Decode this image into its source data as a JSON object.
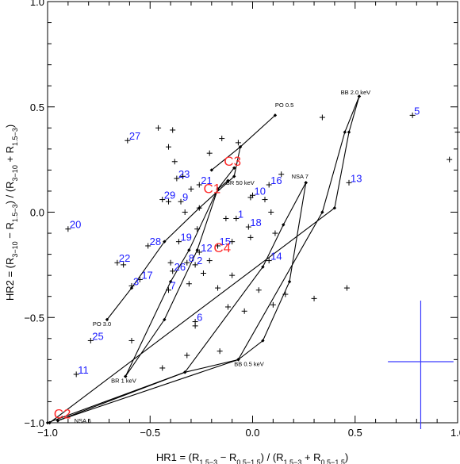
{
  "chart_data": {
    "type": "scatter",
    "xlim": [
      -1.0,
      1.0
    ],
    "ylim": [
      -1.0,
      1.0
    ],
    "grid": false,
    "x_ticks": [
      {
        "value": -1.0,
        "label": "−1.0"
      },
      {
        "value": -0.5,
        "label": "−0.5"
      },
      {
        "value": 0.0,
        "label": "0.0"
      },
      {
        "value": 0.5,
        "label": "0.5"
      },
      {
        "value": 1.0,
        "label": "1.0"
      }
    ],
    "y_ticks": [
      {
        "value": -1.0,
        "label": "−1.0"
      },
      {
        "value": -0.5,
        "label": "−0.5"
      },
      {
        "value": 0.0,
        "label": "0.0"
      },
      {
        "value": 0.5,
        "label": "0.5"
      },
      {
        "value": 1.0,
        "label": "1.0"
      }
    ],
    "xlabel": {
      "parts": [
        {
          "t": "HR1 = (R"
        },
        {
          "t": "1.5−3",
          "sub": true
        },
        {
          "t": " − R"
        },
        {
          "t": "0.5−1.5",
          "sub": true
        },
        {
          "t": ") / (R"
        },
        {
          "t": "1.5−3",
          "sub": true
        },
        {
          "t": " + R"
        },
        {
          "t": "0.5−1.5",
          "sub": true
        },
        {
          "t": ")"
        }
      ]
    },
    "ylabel": {
      "parts": [
        {
          "t": "HR2 = (R"
        },
        {
          "t": "3−10",
          "sub": true
        },
        {
          "t": " − R"
        },
        {
          "t": "1.5−3",
          "sub": true
        },
        {
          "t": ") / (R"
        },
        {
          "t": "3−10",
          "sub": true
        },
        {
          "t": " + R"
        },
        {
          "t": "1.5−3",
          "sub": true
        },
        {
          "t": ")"
        }
      ]
    },
    "colors": {
      "sources": "#1a1aff",
      "clusters": "#ff2a2a",
      "model": "#000000",
      "error_bar": "#3a3aff"
    },
    "model_grid": [
      {
        "name": "PO 0.5",
        "points": [
          [
            -0.2,
            0.2
          ],
          [
            -0.06,
            0.31
          ],
          [
            0.11,
            0.46
          ]
        ]
      },
      {
        "name": "PO 3.0",
        "points": [
          [
            -0.71,
            -0.51
          ],
          [
            -0.59,
            -0.36
          ],
          [
            -0.43,
            -0.14
          ],
          [
            -0.26,
            0.02
          ],
          [
            -0.09,
            0.17
          ],
          [
            -0.06,
            0.31
          ]
        ]
      },
      {
        "name": "BR 1 keV",
        "points": [
          [
            -0.62,
            -0.78
          ],
          [
            -0.43,
            -0.51
          ],
          [
            -0.27,
            -0.18
          ],
          [
            -0.17,
            0.11
          ],
          [
            -0.09,
            0.21
          ]
        ]
      },
      {
        "name": "BR 50 keV",
        "points": [
          [
            -0.62,
            -0.78
          ],
          [
            -0.4,
            -0.33
          ],
          [
            -0.31,
            -0.18
          ],
          [
            -0.17,
            0.11
          ],
          [
            -0.12,
            0.15
          ]
        ]
      },
      {
        "name": "BB 0.5 keV",
        "points": [
          [
            -1.0,
            -1.0
          ],
          [
            -0.33,
            -0.76
          ],
          [
            -0.07,
            -0.7
          ],
          [
            0.05,
            -0.61
          ],
          [
            0.18,
            -0.33
          ],
          [
            0.26,
            0.14
          ]
        ]
      },
      {
        "name": "NSA 7",
        "points": [
          [
            -0.95,
            -0.99
          ],
          [
            -0.33,
            -0.76
          ],
          [
            0.05,
            -0.26
          ],
          [
            0.15,
            -0.06
          ],
          [
            0.26,
            0.14
          ]
        ]
      },
      {
        "name": "NSA 6",
        "points": [
          [
            -0.95,
            -0.99
          ],
          [
            -0.07,
            -0.7
          ],
          [
            0.34,
            0.0
          ],
          [
            0.45,
            0.38
          ],
          [
            0.52,
            0.55
          ]
        ]
      },
      {
        "name": "BB 2.0 keV",
        "points": [
          [
            -0.99,
            -1.0
          ],
          [
            0.4,
            0.02
          ],
          [
            0.47,
            0.38
          ],
          [
            0.52,
            0.55
          ]
        ]
      }
    ],
    "model_labels": [
      {
        "text": "PO 0.5",
        "x": 0.11,
        "y": 0.5
      },
      {
        "text": "BB 2.0 keV",
        "x": 0.43,
        "y": 0.56
      },
      {
        "text": "NSA 7",
        "x": 0.19,
        "y": 0.16
      },
      {
        "text": "BR 50 keV",
        "x": -0.13,
        "y": 0.13
      },
      {
        "text": "PO 3.0",
        "x": -0.78,
        "y": -0.54
      },
      {
        "text": "BR 1 keV",
        "x": -0.69,
        "y": -0.81
      },
      {
        "text": "BB 0.5 keV",
        "x": -0.09,
        "y": -0.73
      },
      {
        "text": "NSA 6",
        "x": -0.87,
        "y": -1.0
      }
    ],
    "crosses": [
      [
        -0.46,
        0.4
      ],
      [
        -0.39,
        0.39
      ],
      [
        -0.41,
        0.31
      ],
      [
        -0.38,
        0.24
      ],
      [
        -0.34,
        0.17
      ],
      [
        -0.21,
        0.28
      ],
      [
        -0.15,
        0.35
      ],
      [
        -0.07,
        0.33
      ],
      [
        -0.3,
        0.11
      ],
      [
        -0.26,
        0.02
      ],
      [
        -0.33,
        0.0
      ],
      [
        -0.27,
        -0.08
      ],
      [
        -0.13,
        -0.03
      ],
      [
        -0.1,
        -0.14
      ],
      [
        -0.01,
        0.07
      ],
      [
        0.06,
        0.06
      ],
      [
        -0.01,
        -0.12
      ],
      [
        0.11,
        -0.1
      ],
      [
        0.09,
        0.0
      ],
      [
        -0.21,
        -0.23
      ],
      [
        -0.24,
        -0.29
      ],
      [
        -0.31,
        -0.34
      ],
      [
        -0.4,
        -0.24
      ],
      [
        -0.1,
        -0.3
      ],
      [
        -0.17,
        -0.36
      ],
      [
        -0.12,
        -0.45
      ],
      [
        -0.28,
        -0.54
      ],
      [
        -0.04,
        -0.47
      ],
      [
        0.03,
        -0.37
      ],
      [
        0.1,
        -0.44
      ],
      [
        0.16,
        -0.39
      ],
      [
        0.3,
        -0.41
      ],
      [
        0.46,
        -0.36
      ],
      [
        0.34,
        0.45
      ],
      [
        0.14,
        0.18
      ],
      [
        -0.41,
        0.05
      ],
      [
        -0.16,
        -0.66
      ],
      [
        -0.32,
        -0.68
      ],
      [
        -0.44,
        -0.74
      ],
      [
        -0.59,
        -0.61
      ],
      [
        0.96,
        0.25
      ],
      [
        1.0,
        0.38
      ],
      [
        -0.63,
        -0.25
      ]
    ],
    "sources": [
      {
        "label": "5",
        "x": 0.78,
        "y": 0.46,
        "cross": true
      },
      {
        "label": "13",
        "x": 0.47,
        "y": 0.14,
        "cross": true
      },
      {
        "label": "27",
        "x": -0.61,
        "y": 0.34,
        "cross": true
      },
      {
        "label": "23",
        "x": -0.37,
        "y": 0.16,
        "cross": true
      },
      {
        "label": "21",
        "x": -0.26,
        "y": 0.13,
        "cross": true
      },
      {
        "label": "16",
        "x": 0.08,
        "y": 0.13,
        "cross": true
      },
      {
        "label": "10",
        "x": 0.0,
        "y": 0.08,
        "cross": true
      },
      {
        "label": "29",
        "x": -0.44,
        "y": 0.06,
        "cross": true
      },
      {
        "label": "9",
        "x": -0.35,
        "y": 0.05,
        "cross": true
      },
      {
        "label": "1",
        "x": -0.08,
        "y": -0.03,
        "cross": true
      },
      {
        "label": "18",
        "x": -0.02,
        "y": -0.07,
        "cross": true
      },
      {
        "label": "20",
        "x": -0.9,
        "y": -0.08,
        "cross": true
      },
      {
        "label": "19",
        "x": -0.36,
        "y": -0.14,
        "cross": true
      },
      {
        "label": "28",
        "x": -0.51,
        "y": -0.16,
        "cross": true
      },
      {
        "label": "15",
        "x": -0.17,
        "y": -0.16,
        "cross": true
      },
      {
        "label": "12",
        "x": -0.26,
        "y": -0.19,
        "cross": true
      },
      {
        "label": "8",
        "x": -0.32,
        "y": -0.24,
        "cross": true
      },
      {
        "label": "2",
        "x": -0.28,
        "y": -0.25,
        "cross": true
      },
      {
        "label": "22",
        "x": -0.66,
        "y": -0.24,
        "cross": true
      },
      {
        "label": "26",
        "x": -0.39,
        "y": -0.28,
        "cross": true
      },
      {
        "label": "14",
        "x": 0.08,
        "y": -0.23,
        "cross": true
      },
      {
        "label": "17",
        "x": -0.55,
        "y": -0.32,
        "cross": true
      },
      {
        "label": "3",
        "x": -0.59,
        "y": -0.35,
        "cross": true
      },
      {
        "label": "7",
        "x": -0.41,
        "y": -0.37,
        "cross": true
      },
      {
        "label": "6",
        "x": -0.28,
        "y": -0.52,
        "cross": true
      },
      {
        "label": "25",
        "x": -0.79,
        "y": -0.61,
        "cross": true
      },
      {
        "label": "11",
        "x": -0.86,
        "y": -0.77,
        "cross": true
      }
    ],
    "clusters": [
      {
        "label": "C3",
        "x": -0.14,
        "y": 0.22
      },
      {
        "label": "C1",
        "x": -0.24,
        "y": 0.09
      },
      {
        "label": "C4",
        "x": -0.19,
        "y": -0.19
      },
      {
        "label": "C2",
        "x": -0.97,
        "y": -0.98
      }
    ],
    "error_bar": {
      "x": 0.82,
      "y": -0.71,
      "x_err": 0.16,
      "y_err_low": 0.32,
      "y_err_high": 0.29
    }
  }
}
